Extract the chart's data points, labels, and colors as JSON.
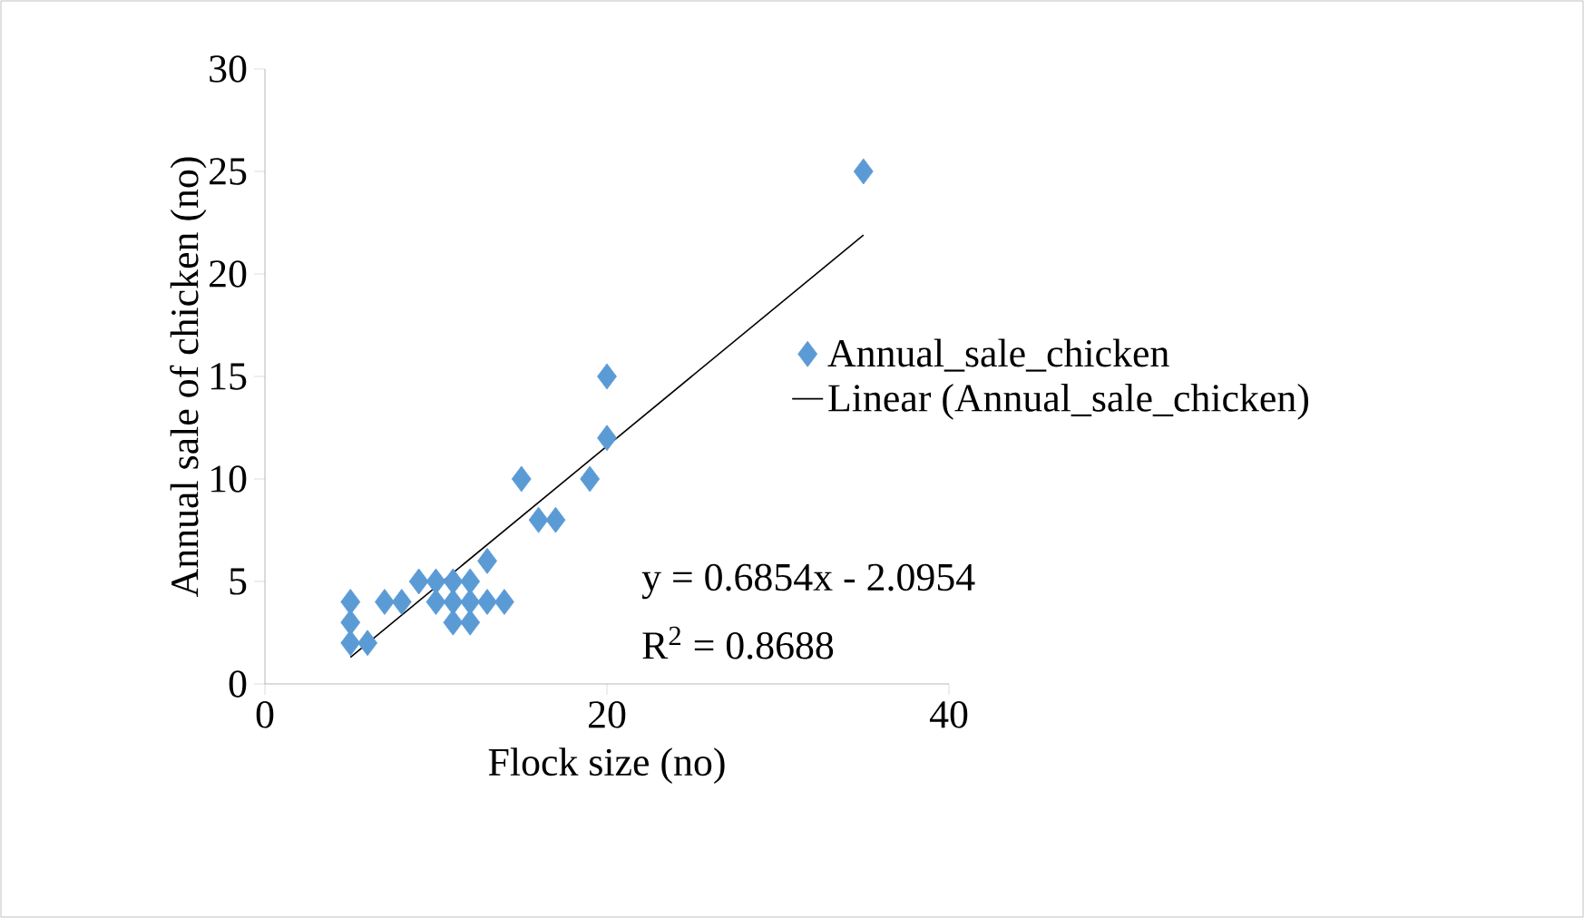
{
  "chart_data": {
    "type": "scatter",
    "xlabel": "Flock size (no)",
    "ylabel": "Annual sale of chicken (no)",
    "xlim": [
      0,
      40
    ],
    "xticks": [
      0,
      20,
      40
    ],
    "ylim": [
      0,
      30
    ],
    "yticks": [
      0,
      5,
      10,
      15,
      20,
      25,
      30
    ],
    "grid": false,
    "legend": "right",
    "marker": "diamond",
    "annotations": [
      "y = 0.6854x - 2.0954",
      "R$^{2}$ = 0.8688"
    ],
    "series": [
      {
        "name": "Annual_sale_chicken",
        "color": "#5b9bd5",
        "x": [
          35,
          20,
          20,
          15,
          19,
          16,
          17,
          13,
          5,
          5,
          5,
          6,
          7,
          8,
          9,
          10,
          11,
          12,
          10,
          11,
          12,
          13,
          14,
          11,
          12
        ],
        "values": [
          25,
          15,
          12,
          10,
          10,
          8,
          8,
          6,
          4,
          3,
          2,
          2,
          4,
          4,
          5,
          5,
          5,
          5,
          4,
          4,
          4,
          4,
          4,
          3,
          3
        ]
      },
      {
        "name": "Linear (Annual_sale_chicken)",
        "type": "line",
        "color": "#000000",
        "marker": "none",
        "x": [
          5,
          35
        ],
        "values": [
          1.3,
          21.9
        ]
      }
    ]
  }
}
